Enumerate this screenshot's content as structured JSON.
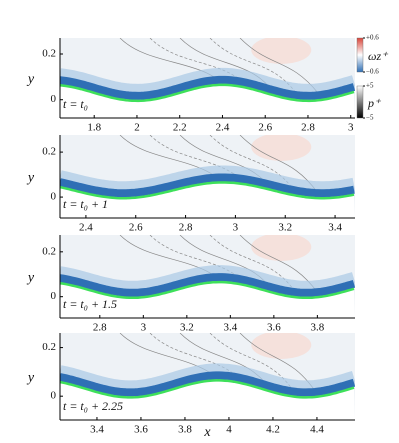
{
  "chart_data": [
    {
      "type": "field",
      "ylabel": "y",
      "annotation": "t = t₀",
      "xlim": [
        1.64,
        3.02
      ],
      "ylim": [
        -0.08,
        0.27
      ],
      "xticks": [
        1.8,
        2,
        2.2,
        2.4,
        2.6,
        2.8,
        3
      ],
      "yticks": [
        0,
        0.2
      ],
      "colorbars": [
        {
          "label": "ωz⁺",
          "colors": [
            "#d9453a",
            "#ffffff",
            "#2f6fb5"
          ],
          "ticks": [
            {
              "value": 0.6,
              "label": "+0.6"
            },
            {
              "value": -0.6,
              "label": "−0.6"
            }
          ]
        },
        {
          "label": "p⁺",
          "colors": [
            "#ffffff",
            "#000000"
          ],
          "ticks": [
            {
              "value": 5,
              "label": "+5"
            },
            {
              "value": -5,
              "label": "−5"
            }
          ]
        }
      ]
    },
    {
      "type": "field",
      "ylabel": "y",
      "annotation": "t = t₀ + 1",
      "xlim": [
        2.296,
        3.48
      ],
      "ylim": [
        -0.093,
        0.276
      ],
      "xticks": [
        2.4,
        2.6,
        2.8,
        3,
        3.2,
        3.4
      ],
      "yticks": [
        0,
        0.2
      ]
    },
    {
      "type": "field",
      "ylabel": "y",
      "annotation": "t = t₀ + 1.5",
      "xlim": [
        2.617,
        3.973
      ],
      "ylim": [
        -0.095,
        0.275
      ],
      "xticks": [
        2.8,
        3,
        3.2,
        3.4,
        3.6,
        3.8
      ],
      "yticks": [
        0,
        0.2
      ]
    },
    {
      "type": "field",
      "ylabel": "y",
      "xlabel": "x",
      "annotation": "t = t₀ + 2.25",
      "xlim": [
        3.232,
        4.573
      ],
      "ylim": [
        -0.098,
        0.26
      ],
      "xticks": [
        3.4,
        3.6,
        3.8,
        4,
        4.2,
        4.4
      ],
      "yticks": [
        0,
        0.2
      ]
    }
  ]
}
